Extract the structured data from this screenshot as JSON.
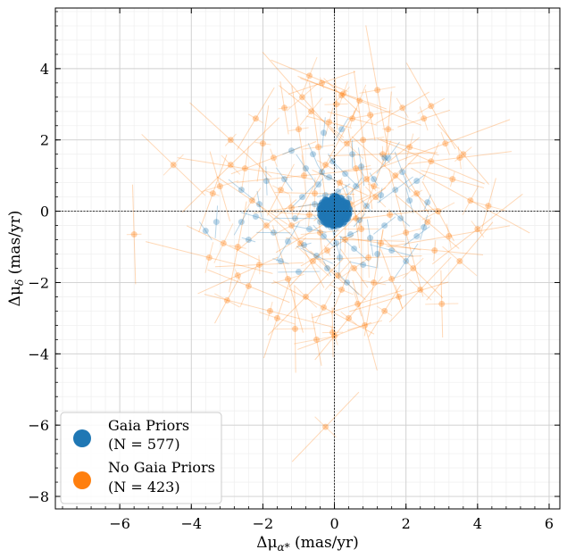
{
  "chart_data": {
    "type": "scatter",
    "xlabel": "Δμ",
    "xlabel_sub": "α*",
    "xlabel_unit": " (mas/yr)",
    "ylabel": "Δμ",
    "ylabel_sub": "δ",
    "ylabel_unit": " (mas/yr)",
    "xlim": [
      -7.8,
      6.3
    ],
    "ylim": [
      -8.35,
      5.7
    ],
    "xticks": [
      -6,
      -4,
      -2,
      0,
      2,
      4,
      6
    ],
    "yticks": [
      -8,
      -6,
      -4,
      -2,
      0,
      2,
      4
    ],
    "xtick_labels": [
      "−6",
      "−4",
      "−2",
      "0",
      "2",
      "4",
      "6"
    ],
    "ytick_labels": [
      "−8",
      "−6",
      "−4",
      "−2",
      "0",
      "2",
      "4"
    ],
    "grid": true,
    "minor_grid": true,
    "legend_position": "lower-left",
    "series": [
      {
        "name": "Gaia Priors",
        "count_label": "(N = 577)",
        "color": "#1f77b4",
        "description": "tight core near origin with scattered outliers",
        "points": [
          [
            -3.6,
            -0.55
          ],
          [
            -3.3,
            -0.3
          ],
          [
            -2.6,
            0.6
          ],
          [
            -2.6,
            -0.3
          ],
          [
            -2.4,
            -0.8
          ],
          [
            -1.9,
            0.85
          ],
          [
            -1.7,
            -0.6
          ],
          [
            -1.5,
            -1.4
          ],
          [
            -1.4,
            0.9
          ],
          [
            -1.3,
            -0.85
          ],
          [
            -1.2,
            1.7
          ],
          [
            -1.1,
            -0.2
          ],
          [
            -1.0,
            -1.7
          ],
          [
            -0.9,
            0.4
          ],
          [
            -0.85,
            -0.95
          ],
          [
            -0.8,
            1.2
          ],
          [
            -0.7,
            -0.5
          ],
          [
            -0.6,
            1.6
          ],
          [
            -0.55,
            0.2
          ],
          [
            -0.5,
            -1.25
          ],
          [
            -0.45,
            0.75
          ],
          [
            -0.4,
            -0.3
          ],
          [
            -0.35,
            1.1
          ],
          [
            -0.3,
            -0.7
          ],
          [
            -0.3,
            2.2
          ],
          [
            -0.25,
            0.45
          ],
          [
            -0.2,
            -1.6
          ],
          [
            -0.15,
            0.95
          ],
          [
            -0.1,
            -0.45
          ],
          [
            -0.05,
            1.4
          ],
          [
            0.05,
            -0.9
          ],
          [
            0.1,
            0.55
          ],
          [
            0.15,
            -1.3
          ],
          [
            0.2,
            2.3
          ],
          [
            0.25,
            -0.35
          ],
          [
            0.3,
            1.05
          ],
          [
            0.35,
            -2.0
          ],
          [
            0.4,
            0.35
          ],
          [
            0.45,
            -0.65
          ],
          [
            0.5,
            1.6
          ],
          [
            0.55,
            -1.05
          ],
          [
            0.6,
            0.7
          ],
          [
            0.7,
            -0.25
          ],
          [
            0.75,
            1.25
          ],
          [
            0.8,
            -1.5
          ],
          [
            0.9,
            0.15
          ],
          [
            1.0,
            -0.75
          ],
          [
            1.1,
            0.9
          ],
          [
            1.2,
            -1.2
          ],
          [
            1.3,
            0.45
          ],
          [
            1.4,
            -0.4
          ],
          [
            1.5,
            1.5
          ],
          [
            1.6,
            -1.1
          ],
          [
            1.7,
            0.6
          ],
          [
            1.85,
            -0.2
          ],
          [
            1.9,
            1.1
          ],
          [
            2.0,
            -1.4
          ],
          [
            2.1,
            0.3
          ],
          [
            2.3,
            0.85
          ],
          [
            2.3,
            -0.7
          ],
          [
            2.5,
            -0.45
          ],
          [
            2.6,
            0.25
          ],
          [
            -2.1,
            0.2
          ],
          [
            -2.2,
            -0.15
          ],
          [
            1.4,
            1.5
          ]
        ]
      },
      {
        "name": "No Gaia Priors",
        "count_label": "(N = 423)",
        "color": "#ff7f0e",
        "description": "broad cloud with long error bars",
        "points": [
          [
            -5.6,
            -0.65
          ],
          [
            -4.5,
            1.3
          ],
          [
            -3.5,
            -1.3
          ],
          [
            -3.2,
            0.7
          ],
          [
            -3.0,
            -2.5
          ],
          [
            -2.9,
            2.0
          ],
          [
            -2.7,
            -1.0
          ],
          [
            -2.5,
            1.2
          ],
          [
            -2.4,
            -2.1
          ],
          [
            -2.3,
            0.3
          ],
          [
            -2.2,
            2.6
          ],
          [
            -2.1,
            -1.5
          ],
          [
            -2.0,
            1.9
          ],
          [
            -1.9,
            -0.4
          ],
          [
            -1.8,
            -2.8
          ],
          [
            -1.7,
            1.5
          ],
          [
            -1.6,
            -3.0
          ],
          [
            -1.5,
            0.6
          ],
          [
            -1.4,
            2.9
          ],
          [
            -1.3,
            -1.9
          ],
          [
            -1.2,
            0.1
          ],
          [
            -1.1,
            -3.3
          ],
          [
            -1.0,
            2.3
          ],
          [
            -0.95,
            -0.9
          ],
          [
            -0.9,
            3.2
          ],
          [
            -0.85,
            1.0
          ],
          [
            -0.8,
            -2.4
          ],
          [
            -0.7,
            -0.1
          ],
          [
            -0.65,
            2.8
          ],
          [
            -0.6,
            -1.4
          ],
          [
            -0.55,
            0.5
          ],
          [
            -0.5,
            -3.6
          ],
          [
            -0.45,
            1.8
          ],
          [
            -0.4,
            -0.6
          ],
          [
            -0.35,
            3.6
          ],
          [
            -0.3,
            -2.7
          ],
          [
            -0.25,
            1.3
          ],
          [
            -0.2,
            -1.1
          ],
          [
            -0.15,
            2.5
          ],
          [
            -0.1,
            -0.25
          ],
          [
            -0.05,
            -3.4
          ],
          [
            0.05,
            3.0
          ],
          [
            0.1,
            -1.8
          ],
          [
            0.15,
            0.8
          ],
          [
            0.2,
            -2.2
          ],
          [
            0.25,
            3.3
          ],
          [
            0.3,
            -0.8
          ],
          [
            0.35,
            1.9
          ],
          [
            0.4,
            -3.0
          ],
          [
            0.45,
            0.2
          ],
          [
            0.5,
            2.6
          ],
          [
            0.55,
            -1.6
          ],
          [
            0.6,
            1.2
          ],
          [
            0.65,
            -2.6
          ],
          [
            0.7,
            3.1
          ],
          [
            0.75,
            -0.5
          ],
          [
            0.8,
            2.0
          ],
          [
            0.85,
            -3.2
          ],
          [
            0.9,
            0.9
          ],
          [
            0.95,
            -1.3
          ],
          [
            1.0,
            2.7
          ],
          [
            1.1,
            -2.0
          ],
          [
            1.15,
            0.4
          ],
          [
            1.2,
            3.4
          ],
          [
            1.3,
            -0.9
          ],
          [
            1.35,
            1.6
          ],
          [
            1.4,
            -2.8
          ],
          [
            1.5,
            2.3
          ],
          [
            1.55,
            -0.1
          ],
          [
            1.6,
            -1.9
          ],
          [
            1.7,
            1.0
          ],
          [
            1.8,
            -2.4
          ],
          [
            1.9,
            2.9
          ],
          [
            2.0,
            -0.6
          ],
          [
            2.1,
            1.8
          ],
          [
            2.2,
            -1.6
          ],
          [
            2.3,
            0.5
          ],
          [
            2.4,
            -2.2
          ],
          [
            2.5,
            2.6
          ],
          [
            2.6,
            -0.3
          ],
          [
            2.7,
            1.4
          ],
          [
            2.8,
            -1.1
          ],
          [
            2.9,
            0.0
          ],
          [
            3.0,
            -2.6
          ],
          [
            3.1,
            1.9
          ],
          [
            3.2,
            -0.7
          ],
          [
            3.3,
            0.9
          ],
          [
            3.5,
            -1.4
          ],
          [
            3.6,
            1.6
          ],
          [
            3.8,
            0.3
          ],
          [
            4.0,
            -0.5
          ],
          [
            4.3,
            0.15
          ],
          [
            3.5,
            1.5
          ],
          [
            2.7,
            2.95
          ],
          [
            -0.7,
            3.8
          ],
          [
            -0.25,
            -6.05
          ],
          [
            -3.4,
            0.5
          ],
          [
            -3.1,
            -0.9
          ],
          [
            -2.9,
            1.3
          ],
          [
            -2.7,
            -1.8
          ],
          [
            0.0,
            -3.5
          ],
          [
            0.2,
            3.25
          ],
          [
            -1.2,
            -0.4
          ],
          [
            1.1,
            0.7
          ],
          [
            0.6,
            -0.2
          ]
        ]
      }
    ],
    "reference_lines": {
      "x": 0,
      "y": 0
    }
  }
}
